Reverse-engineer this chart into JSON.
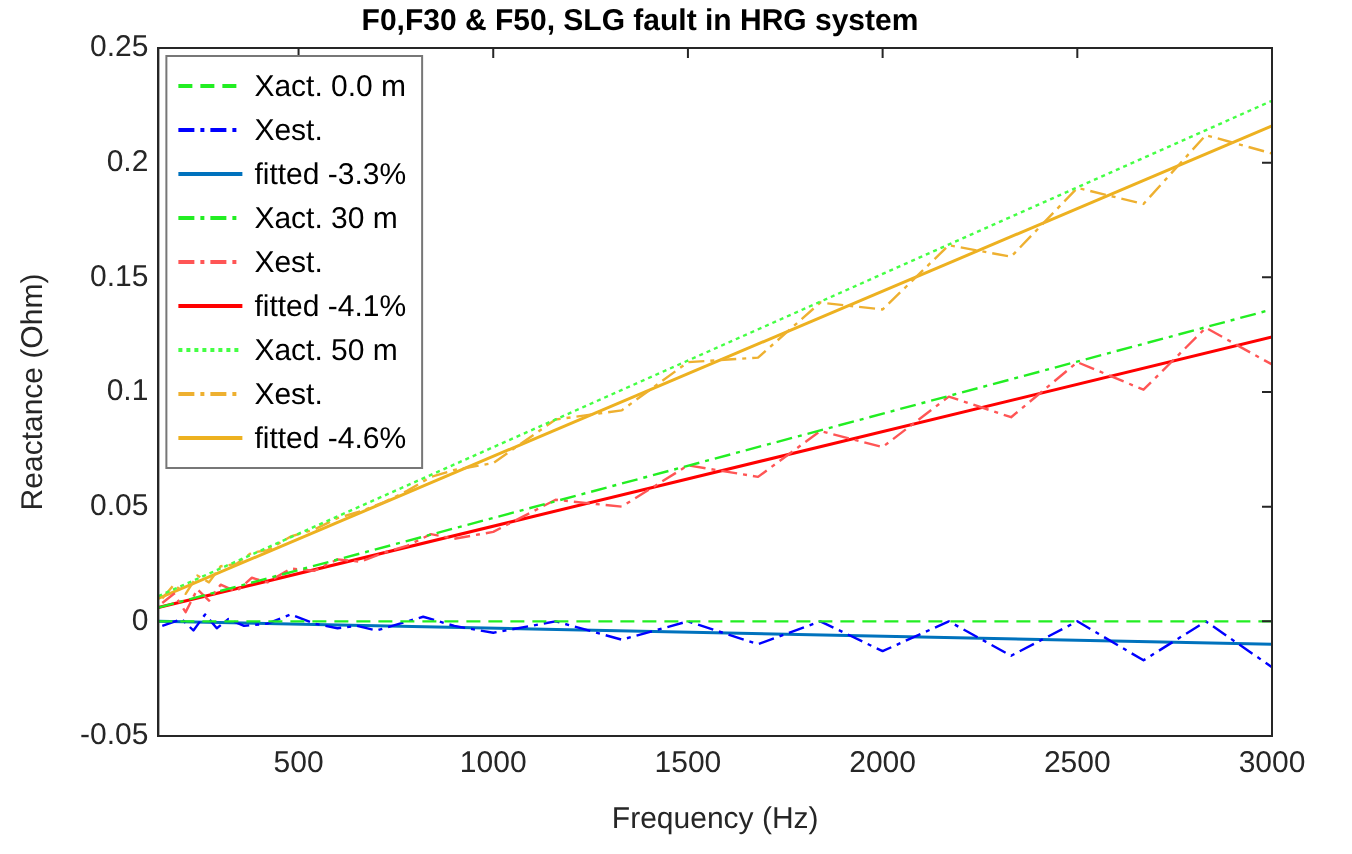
{
  "chart_data": {
    "type": "line",
    "title": "F0,F30 & F50, SLG fault in HRG system",
    "xlabel": "Frequency (Hz)",
    "ylabel": "Reactance (Ohm)",
    "xlim": [
      140,
      3000
    ],
    "xticks": [
      500,
      1000,
      1500,
      2000,
      2500,
      3000
    ],
    "ylim": [
      -0.05,
      0.25
    ],
    "yticks": [
      -0.05,
      0,
      0.05,
      0.1,
      0.15,
      0.2,
      0.25
    ],
    "grid": false,
    "legend": "top left",
    "marker": "none",
    "series": [
      {
        "name": "Xact. 0.0 m",
        "color": "#22ee22",
        "line_style": "dashed",
        "x": [
          140,
          3000
        ],
        "values": [
          0,
          0
        ]
      },
      {
        "name": "Xest.",
        "color": "#0000ff",
        "line_style": "dashdot",
        "x": [
          150,
          200,
          230,
          260,
          290,
          320,
          360,
          420,
          480,
          540,
          600,
          650,
          700,
          760,
          820,
          900,
          1000,
          1160,
          1330,
          1500,
          1680,
          1840,
          2000,
          2170,
          2330,
          2500,
          2670,
          2830,
          3000
        ],
        "values": [
          -0.002,
          0.001,
          -0.004,
          0.003,
          -0.003,
          0.001,
          -0.002,
          -0.001,
          0.003,
          -0.001,
          -0.003,
          -0.002,
          -0.004,
          -0.001,
          0.002,
          -0.002,
          -0.005,
          0,
          -0.008,
          0,
          -0.01,
          0,
          -0.013,
          0,
          -0.015,
          0,
          -0.017,
          0,
          -0.02
        ]
      },
      {
        "name": "fitted -3.3%",
        "color": "#0072bd",
        "line_style": "solid",
        "x": [
          140,
          3000
        ],
        "values": [
          0,
          -0.01
        ]
      },
      {
        "name": "Xact. 30 m",
        "color": "#22ee22",
        "line_style": "dashdot",
        "x": [
          140,
          3000
        ],
        "values": [
          0.006,
          0.136
        ]
      },
      {
        "name": "Xest.",
        "color": "#ff5555",
        "line_style": "dashdot",
        "x": [
          150,
          180,
          210,
          240,
          270,
          300,
          340,
          380,
          420,
          480,
          540,
          600,
          660,
          720,
          780,
          840,
          900,
          1000,
          1160,
          1330,
          1500,
          1680,
          1840,
          2000,
          2170,
          2330,
          2500,
          2670,
          2830,
          3000
        ],
        "values": [
          0.008,
          0.012,
          0.004,
          0.014,
          0.009,
          0.016,
          0.013,
          0.019,
          0.017,
          0.023,
          0.022,
          0.027,
          0.026,
          0.03,
          0.033,
          0.038,
          0.036,
          0.039,
          0.053,
          0.05,
          0.068,
          0.063,
          0.083,
          0.076,
          0.098,
          0.089,
          0.113,
          0.101,
          0.128,
          0.112
        ]
      },
      {
        "name": "fitted -4.1%",
        "color": "#ff0000",
        "line_style": "solid",
        "x": [
          140,
          3000
        ],
        "values": [
          0.006,
          0.124
        ]
      },
      {
        "name": "Xact. 50 m",
        "color": "#44ff44",
        "line_style": "dotted",
        "x": [
          140,
          3000
        ],
        "values": [
          0.011,
          0.227
        ]
      },
      {
        "name": "Xest.",
        "color": "#eeb030",
        "line_style": "dashdot",
        "x": [
          150,
          180,
          210,
          240,
          270,
          300,
          340,
          380,
          420,
          480,
          540,
          600,
          660,
          720,
          780,
          840,
          900,
          1000,
          1160,
          1330,
          1500,
          1680,
          1840,
          2000,
          2170,
          2330,
          2500,
          2670,
          2830,
          3000
        ],
        "values": [
          0.01,
          0.016,
          0.012,
          0.02,
          0.017,
          0.024,
          0.025,
          0.03,
          0.031,
          0.037,
          0.04,
          0.045,
          0.048,
          0.052,
          0.057,
          0.063,
          0.066,
          0.069,
          0.088,
          0.092,
          0.113,
          0.115,
          0.139,
          0.136,
          0.164,
          0.159,
          0.189,
          0.182,
          0.212,
          0.204
        ]
      },
      {
        "name": "fitted -4.6%",
        "color": "#edb120",
        "line_style": "solid",
        "x": [
          140,
          3000
        ],
        "values": [
          0.01,
          0.216
        ]
      }
    ]
  }
}
